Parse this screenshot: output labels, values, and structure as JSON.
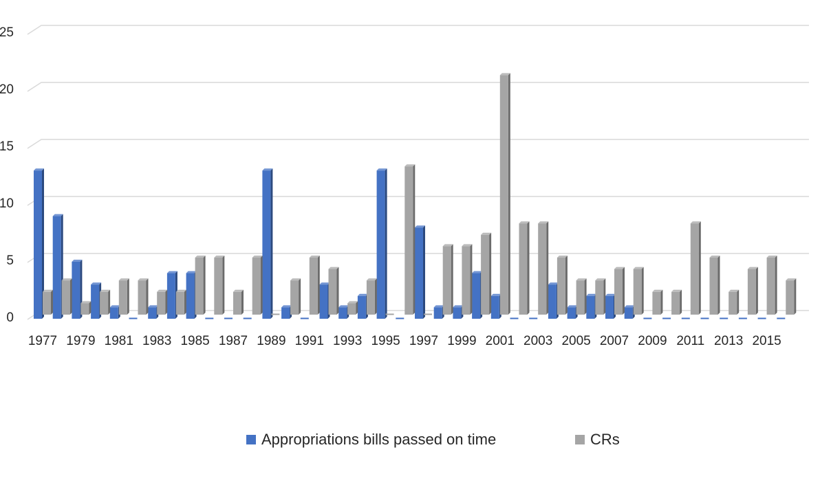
{
  "chart_data": {
    "type": "bar",
    "title": "",
    "xlabel": "",
    "ylabel": "",
    "ylim": [
      0,
      25
    ],
    "yticks": [
      0,
      5,
      10,
      15,
      20,
      25
    ],
    "grid": true,
    "legend_position": "bottom",
    "categories": [
      1977,
      1978,
      1979,
      1980,
      1981,
      1982,
      1983,
      1984,
      1985,
      1986,
      1987,
      1988,
      1989,
      1990,
      1991,
      1992,
      1993,
      1994,
      1995,
      1996,
      1997,
      1998,
      1999,
      2000,
      2001,
      2002,
      2003,
      2004,
      2005,
      2006,
      2007,
      2008,
      2009,
      2010,
      2011,
      2012,
      2013,
      2014,
      2015,
      2016
    ],
    "xtick_labels": [
      "1977",
      "1979",
      "1981",
      "1983",
      "1985",
      "1987",
      "1989",
      "1991",
      "1993",
      "1995",
      "1997",
      "1999",
      "2001",
      "2003",
      "2005",
      "2007",
      "2009",
      "2011",
      "2013",
      "2015"
    ],
    "series": [
      {
        "name": "Appropriations bills passed on time",
        "color": "#4472C4",
        "values": [
          13,
          9,
          5,
          3,
          1,
          0,
          1,
          4,
          4,
          0,
          0,
          0,
          13,
          1,
          0,
          3,
          1,
          2,
          13,
          0,
          8,
          1,
          1,
          4,
          2,
          0,
          0,
          3,
          1,
          2,
          2,
          1,
          0,
          0,
          0,
          0,
          0,
          0,
          0,
          0
        ]
      },
      {
        "name": "CRs",
        "color": "#A5A5A5",
        "values": [
          2,
          3,
          1,
          2,
          3,
          3,
          2,
          2,
          5,
          5,
          2,
          5,
          0,
          3,
          5,
          4,
          1,
          3,
          0,
          13,
          0,
          6,
          6,
          7,
          21,
          8,
          8,
          5,
          3,
          3,
          4,
          4,
          2,
          2,
          8,
          5,
          2,
          4,
          5,
          3
        ]
      }
    ]
  }
}
